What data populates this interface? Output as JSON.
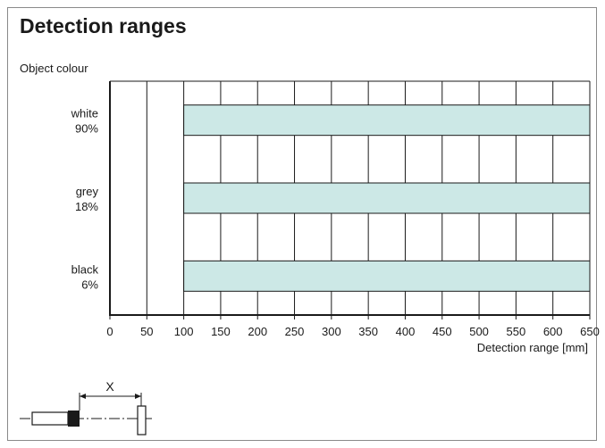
{
  "title": "Detection ranges",
  "chart_data": {
    "type": "bar",
    "orientation": "horizontal",
    "ylabel": "Object colour",
    "xlabel": "Detection range [mm]",
    "xlim": [
      0,
      650
    ],
    "x_ticks": [
      0,
      50,
      100,
      150,
      200,
      250,
      300,
      350,
      400,
      450,
      500,
      550,
      600,
      650
    ],
    "grid": true,
    "categories": [
      {
        "line1": "white",
        "line2": "90%"
      },
      {
        "line1": "grey",
        "line2": "18%"
      },
      {
        "line1": "black",
        "line2": "6%"
      }
    ],
    "series": [
      {
        "ranges": [
          [
            100,
            650
          ],
          [
            100,
            650
          ],
          [
            100,
            650
          ]
        ]
      }
    ],
    "bar_color": "#cce8e6",
    "diagram_label": "X"
  }
}
